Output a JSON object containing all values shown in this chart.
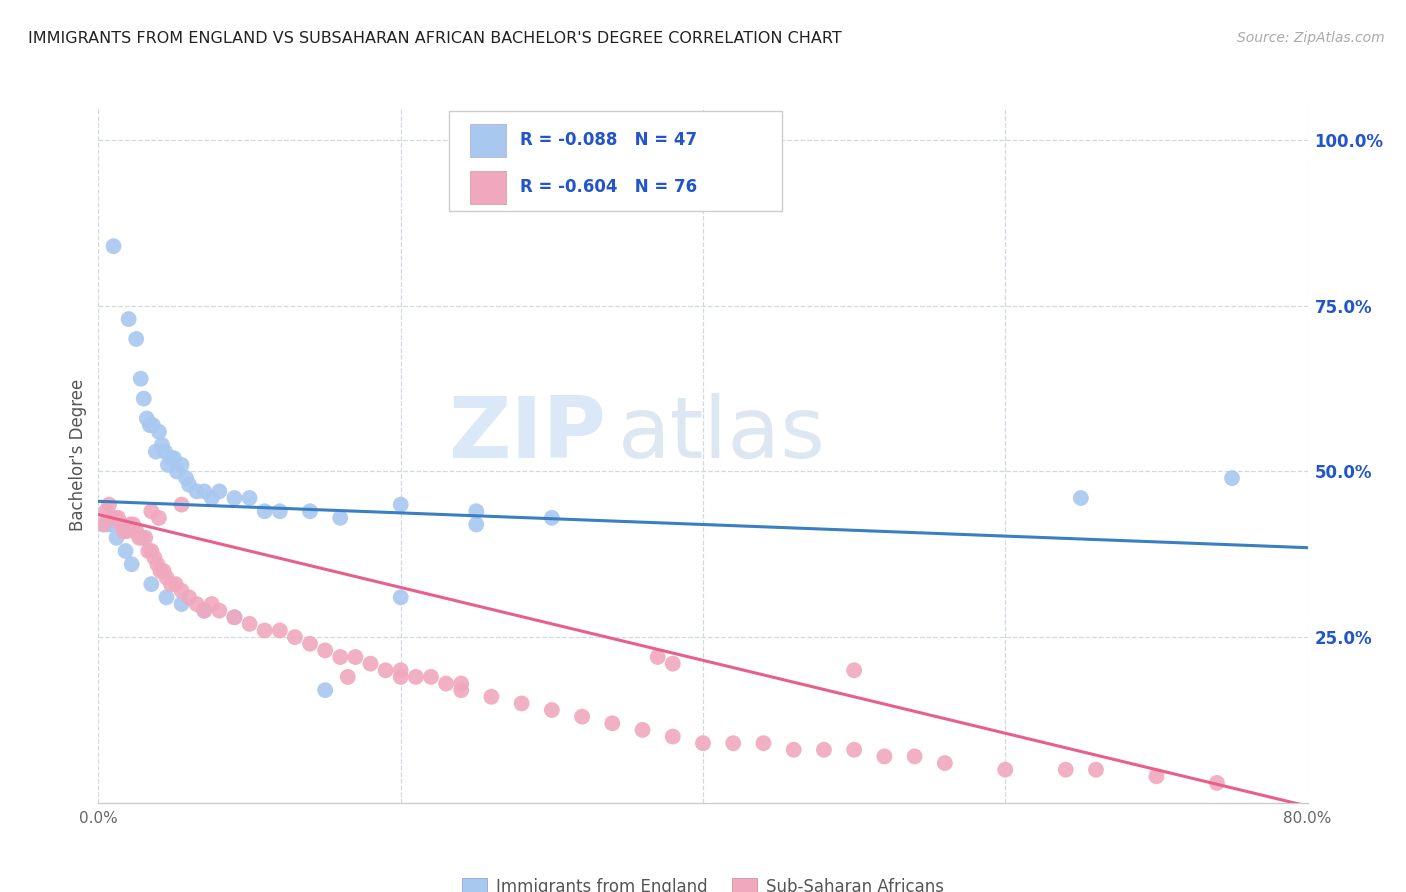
{
  "title": "IMMIGRANTS FROM ENGLAND VS SUBSAHARAN AFRICAN BACHELOR'S DEGREE CORRELATION CHART",
  "source": "Source: ZipAtlas.com",
  "ylabel": "Bachelor's Degree",
  "right_yticks": [
    "100.0%",
    "75.0%",
    "50.0%",
    "25.0%"
  ],
  "right_ytick_vals": [
    1.0,
    0.75,
    0.5,
    0.25
  ],
  "legend_label_blue": "Immigrants from England",
  "legend_label_pink": "Sub-Saharan Africans",
  "legend_R_blue": "-0.088",
  "legend_N_blue": "47",
  "legend_R_pink": "-0.604",
  "legend_N_pink": "76",
  "blue_color": "#a8c8f0",
  "pink_color": "#f0a8be",
  "blue_line_color": "#3a7fc1",
  "pink_line_color": "#e8608a",
  "legend_text_color": "#2255cc",
  "watermark_zip_color": "#c5d8f0",
  "watermark_atlas_color": "#c8d8e8",
  "background_color": "#ffffff",
  "grid_color": "#d0d8e0",
  "xmin": 0.0,
  "xmax": 0.8,
  "ymin": 0.0,
  "ymax": 1.05,
  "blue_line_x0": 0.0,
  "blue_line_x1": 0.8,
  "blue_line_y0": 0.455,
  "blue_line_y1": 0.385,
  "pink_line_x0": 0.0,
  "pink_line_x1": 0.8,
  "pink_line_y0": 0.435,
  "pink_line_y1": -0.005,
  "blue_x": [
    0.01,
    0.02,
    0.025,
    0.028,
    0.03,
    0.032,
    0.034,
    0.036,
    0.038,
    0.04,
    0.042,
    0.044,
    0.046,
    0.048,
    0.05,
    0.052,
    0.055,
    0.058,
    0.06,
    0.065,
    0.07,
    0.075,
    0.08,
    0.09,
    0.1,
    0.11,
    0.12,
    0.14,
    0.16,
    0.2,
    0.25,
    0.3,
    0.65,
    0.75,
    0.005,
    0.008,
    0.012,
    0.018,
    0.022,
    0.035,
    0.045,
    0.055,
    0.07,
    0.09,
    0.15,
    0.2,
    0.25
  ],
  "blue_y": [
    0.84,
    0.73,
    0.7,
    0.64,
    0.61,
    0.58,
    0.57,
    0.57,
    0.53,
    0.56,
    0.54,
    0.53,
    0.51,
    0.52,
    0.52,
    0.5,
    0.51,
    0.49,
    0.48,
    0.47,
    0.47,
    0.46,
    0.47,
    0.46,
    0.46,
    0.44,
    0.44,
    0.44,
    0.43,
    0.45,
    0.44,
    0.43,
    0.46,
    0.49,
    0.42,
    0.42,
    0.4,
    0.38,
    0.36,
    0.33,
    0.31,
    0.3,
    0.29,
    0.28,
    0.17,
    0.31,
    0.42
  ],
  "pink_x": [
    0.003,
    0.005,
    0.007,
    0.009,
    0.011,
    0.013,
    0.015,
    0.017,
    0.019,
    0.021,
    0.023,
    0.025,
    0.027,
    0.029,
    0.031,
    0.033,
    0.035,
    0.037,
    0.039,
    0.041,
    0.043,
    0.045,
    0.048,
    0.051,
    0.055,
    0.06,
    0.065,
    0.07,
    0.075,
    0.08,
    0.09,
    0.1,
    0.11,
    0.12,
    0.13,
    0.14,
    0.15,
    0.16,
    0.17,
    0.18,
    0.19,
    0.2,
    0.21,
    0.22,
    0.23,
    0.24,
    0.26,
    0.28,
    0.3,
    0.32,
    0.34,
    0.36,
    0.38,
    0.4,
    0.42,
    0.44,
    0.46,
    0.48,
    0.5,
    0.52,
    0.54,
    0.56,
    0.6,
    0.64,
    0.66,
    0.7,
    0.74,
    0.035,
    0.04,
    0.055,
    0.165,
    0.2,
    0.24,
    0.37,
    0.38,
    0.5
  ],
  "pink_y": [
    0.42,
    0.44,
    0.45,
    0.43,
    0.43,
    0.43,
    0.42,
    0.41,
    0.41,
    0.42,
    0.42,
    0.41,
    0.4,
    0.4,
    0.4,
    0.38,
    0.38,
    0.37,
    0.36,
    0.35,
    0.35,
    0.34,
    0.33,
    0.33,
    0.32,
    0.31,
    0.3,
    0.29,
    0.3,
    0.29,
    0.28,
    0.27,
    0.26,
    0.26,
    0.25,
    0.24,
    0.23,
    0.22,
    0.22,
    0.21,
    0.2,
    0.2,
    0.19,
    0.19,
    0.18,
    0.17,
    0.16,
    0.15,
    0.14,
    0.13,
    0.12,
    0.11,
    0.1,
    0.09,
    0.09,
    0.09,
    0.08,
    0.08,
    0.08,
    0.07,
    0.07,
    0.06,
    0.05,
    0.05,
    0.05,
    0.04,
    0.03,
    0.44,
    0.43,
    0.45,
    0.19,
    0.19,
    0.18,
    0.22,
    0.21,
    0.2
  ]
}
